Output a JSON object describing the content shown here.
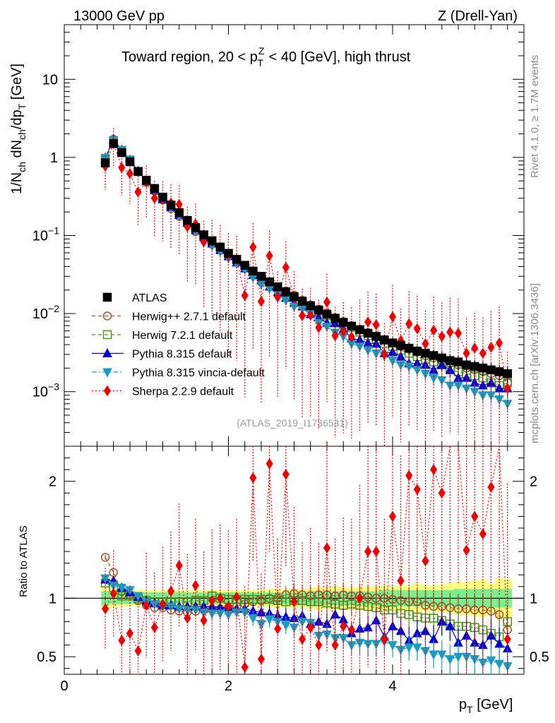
{
  "header": {
    "left": "13000 GeV pp",
    "right": "Z (Drell-Yan)"
  },
  "side_labels": {
    "rivet": "Rivet 4.1.0, ≥ 1.7M events",
    "mcplots": "mcplots.cern.ch [arXiv:1306.3436]"
  },
  "chart_data": [
    {
      "type": "scatter",
      "panel": "main",
      "title": "Toward region, 20 < p_T^Z < 40 [GeV], high thrust",
      "title_parts": {
        "pre": "Toward region, 20 < p",
        "sup": "Z",
        "sub": "T",
        "post": " < 40 [GeV], high thrust"
      },
      "ylabel": "1/N_ch dN_ch/dp_T [GeV]",
      "ylabel_parts": {
        "a": "1/N",
        "a_sub": "ch",
        "b": " dN",
        "b_sub": "ch",
        "c": "/dp",
        "c_sub": "T",
        "d": " [GeV]"
      },
      "yscale": "log",
      "ylim": [
        0.0002,
        50
      ],
      "xlim": [
        0,
        5.6
      ],
      "yticks": [
        {
          "value": 10,
          "label": "10"
        },
        {
          "value": 1,
          "label": "1"
        },
        {
          "value": 0.1,
          "label": "10",
          "exp": "−1"
        },
        {
          "value": 0.01,
          "label": "10",
          "exp": "−2"
        },
        {
          "value": 0.001,
          "label": "10",
          "exp": "−3"
        }
      ],
      "watermark": "(ATLAS_2019_I1736531)",
      "legend_position": "middle-left",
      "x": [
        0.5,
        0.6,
        0.7,
        0.8,
        0.9,
        1.0,
        1.1,
        1.2,
        1.3,
        1.4,
        1.5,
        1.6,
        1.7,
        1.8,
        1.9,
        2.0,
        2.1,
        2.2,
        2.3,
        2.4,
        2.5,
        2.6,
        2.7,
        2.8,
        2.9,
        3.0,
        3.1,
        3.2,
        3.3,
        3.4,
        3.5,
        3.6,
        3.7,
        3.8,
        3.9,
        4.0,
        4.1,
        4.2,
        4.3,
        4.4,
        4.5,
        4.6,
        4.7,
        4.8,
        4.9,
        5.0,
        5.1,
        5.2,
        5.3,
        5.4
      ],
      "series": [
        {
          "name": "ATLAS",
          "values": [
            0.85,
            1.5,
            1.15,
            0.88,
            0.66,
            0.51,
            0.4,
            0.31,
            0.245,
            0.196,
            0.156,
            0.126,
            0.102,
            0.085,
            0.071,
            0.059,
            0.0495,
            0.0415,
            0.035,
            0.03,
            0.0255,
            0.022,
            0.019,
            0.0165,
            0.0144,
            0.0126,
            0.0111,
            0.0098,
            0.0087,
            0.0077,
            0.0069,
            0.0062,
            0.0056,
            0.0051,
            0.0046,
            0.0042,
            0.0039,
            0.0036,
            0.0033,
            0.0031,
            0.0029,
            0.0027,
            0.0025,
            0.0024,
            0.0022,
            0.0021,
            0.002,
            0.0019,
            0.0018,
            0.0017
          ]
        },
        {
          "name": "Herwig++ 2.7.1 default",
          "values": [
            0.96,
            1.7,
            1.22,
            0.91,
            0.65,
            0.48,
            0.37,
            0.285,
            0.22,
            0.175,
            0.138,
            0.112,
            0.092,
            0.077,
            0.065,
            0.054,
            0.046,
            0.0395,
            0.034,
            0.0295,
            0.0255,
            0.022,
            0.0195,
            0.0172,
            0.0148,
            0.0129,
            0.0114,
            0.0101,
            0.0089,
            0.0079,
            0.007,
            0.0063,
            0.0057,
            0.0051,
            0.0046,
            0.0042,
            0.0038,
            0.0035,
            0.0032,
            0.0029,
            0.0027,
            0.0025,
            0.0023,
            0.0022,
            0.002,
            0.0019,
            0.0018,
            0.0017,
            0.0016,
            0.0013
          ]
        },
        {
          "name": "Herwig 7.2.1 default",
          "values": [
            0.93,
            1.62,
            1.18,
            0.9,
            0.66,
            0.5,
            0.39,
            0.3,
            0.237,
            0.19,
            0.152,
            0.123,
            0.1,
            0.086,
            0.071,
            0.058,
            0.049,
            0.041,
            0.0345,
            0.0297,
            0.0252,
            0.0216,
            0.0185,
            0.0162,
            0.0141,
            0.0122,
            0.0107,
            0.0094,
            0.0083,
            0.0073,
            0.0066,
            0.0058,
            0.0052,
            0.0047,
            0.0041,
            0.0038,
            0.0034,
            0.0031,
            0.0028,
            0.0026,
            0.0024,
            0.0022,
            0.0019,
            0.0018,
            0.0017,
            0.0016,
            0.0015,
            0.0013,
            0.0012,
            0.0013
          ]
        },
        {
          "name": "Pythia 8.315 default",
          "values": [
            0.98,
            1.7,
            1.25,
            0.93,
            0.67,
            0.5,
            0.38,
            0.29,
            0.23,
            0.183,
            0.145,
            0.117,
            0.095,
            0.079,
            0.065,
            0.054,
            0.045,
            0.0378,
            0.0312,
            0.0265,
            0.0221,
            0.0187,
            0.0159,
            0.0137,
            0.0123,
            0.0098,
            0.0089,
            0.0076,
            0.0075,
            0.0063,
            0.0048,
            0.0046,
            0.0042,
            0.0041,
            0.0031,
            0.0032,
            0.0028,
            0.0023,
            0.0023,
            0.0022,
            0.0019,
            0.0022,
            0.0019,
            0.0015,
            0.0015,
            0.0013,
            0.0012,
            0.0013,
            0.0011,
            0.0011
          ]
        },
        {
          "name": "Pythia 8.315 vincia-default",
          "values": [
            0.99,
            1.67,
            1.25,
            0.94,
            0.67,
            0.49,
            0.38,
            0.29,
            0.227,
            0.178,
            0.14,
            0.113,
            0.09,
            0.074,
            0.062,
            0.051,
            0.0435,
            0.0365,
            0.029,
            0.0235,
            0.0208,
            0.0176,
            0.0147,
            0.0123,
            0.0115,
            0.0099,
            0.0076,
            0.0068,
            0.0057,
            0.0051,
            0.0041,
            0.0038,
            0.0034,
            0.0031,
            0.0029,
            0.0025,
            0.0022,
            0.0021,
            0.0019,
            0.0017,
            0.0015,
            0.0014,
            0.0012,
            0.0012,
            0.0011,
            0.001,
            0.0009,
            0.0009,
            0.0008,
            0.0007
          ]
        },
        {
          "name": "Sherpa 2.2.9 default",
          "values": [
            0.77,
            1.55,
            0.74,
            0.62,
            0.36,
            0.48,
            0.3,
            0.29,
            0.26,
            0.25,
            0.13,
            0.14,
            0.083,
            0.084,
            0.071,
            0.055,
            0.05,
            0.017,
            0.071,
            0.0143,
            0.055,
            0.0163,
            0.039,
            0.016,
            0.0094,
            0.0095,
            0.0066,
            0.014,
            0.0052,
            0.0059,
            0.005,
            0.0062,
            0.0078,
            0.0072,
            0.003,
            0.0091,
            0.0045,
            0.0074,
            0.0064,
            0.0041,
            0.0061,
            0.0051,
            0.0058,
            0.0056,
            0.0031,
            0.0036,
            0.0031,
            0.0037,
            0.0042,
            0.0011
          ]
        }
      ]
    },
    {
      "type": "scatter",
      "panel": "ratio",
      "ylabel": "Ratio to ATLAS",
      "xlabel": "p_T [GeV]",
      "xlabel_parts": {
        "a": "p",
        "a_sub": "T",
        "b": " [GeV]"
      },
      "ylim": [
        0.35,
        2.3
      ],
      "xlim": [
        0,
        5.6
      ],
      "xticks": [
        {
          "value": 0,
          "label": "0"
        },
        {
          "value": 2,
          "label": "2"
        },
        {
          "value": 4,
          "label": "4"
        }
      ],
      "yticks": [
        {
          "value": 2,
          "label": "2"
        },
        {
          "value": 1,
          "label": "1"
        },
        {
          "value": 0.5,
          "label": "0.5"
        }
      ],
      "band_1sigma": [
        0.06,
        0.05,
        0.05,
        0.05,
        0.05,
        0.05,
        0.05,
        0.05,
        0.05,
        0.05,
        0.05,
        0.05,
        0.05,
        0.05,
        0.05,
        0.05,
        0.05,
        0.05,
        0.05,
        0.05,
        0.05,
        0.05,
        0.05,
        0.05,
        0.05,
        0.06,
        0.06,
        0.06,
        0.06,
        0.06,
        0.06,
        0.06,
        0.06,
        0.06,
        0.07,
        0.07,
        0.07,
        0.07,
        0.07,
        0.07,
        0.07,
        0.07,
        0.07,
        0.08,
        0.08,
        0.08,
        0.08,
        0.08,
        0.08,
        0.08
      ],
      "band_2sigma": [
        0.1,
        0.08,
        0.07,
        0.07,
        0.07,
        0.07,
        0.07,
        0.07,
        0.07,
        0.07,
        0.07,
        0.07,
        0.07,
        0.07,
        0.07,
        0.07,
        0.07,
        0.07,
        0.07,
        0.07,
        0.08,
        0.08,
        0.08,
        0.08,
        0.08,
        0.09,
        0.1,
        0.09,
        0.1,
        0.1,
        0.09,
        0.1,
        0.1,
        0.1,
        0.11,
        0.1,
        0.11,
        0.11,
        0.13,
        0.11,
        0.11,
        0.12,
        0.13,
        0.14,
        0.14,
        0.15,
        0.16,
        0.13,
        0.17,
        0.16
      ],
      "series": [
        {
          "name": "Herwig++ 2.7.1 default",
          "values": [
            1.35,
            1.22,
            1.06,
            1.03,
            0.98,
            0.94,
            0.92,
            0.92,
            0.9,
            0.89,
            0.88,
            0.89,
            0.9,
            0.9,
            0.91,
            0.92,
            0.93,
            0.95,
            0.97,
            0.98,
            1.0,
            1.0,
            1.03,
            1.04,
            1.03,
            1.02,
            1.03,
            1.03,
            1.02,
            1.03,
            1.02,
            1.02,
            1.01,
            1.0,
            1.0,
            0.99,
            0.98,
            0.97,
            0.97,
            0.94,
            0.93,
            0.93,
            0.92,
            0.91,
            0.91,
            0.9,
            0.9,
            0.89,
            0.86,
            0.73
          ]
        },
        {
          "name": "Herwig 7.2.1 default",
          "values": [
            1.13,
            1.09,
            1.02,
            1.02,
            1.0,
            0.98,
            0.97,
            0.97,
            0.97,
            0.97,
            0.97,
            0.98,
            0.98,
            1.02,
            1.0,
            0.99,
            0.99,
            0.99,
            0.99,
            0.99,
            0.99,
            0.98,
            0.97,
            0.98,
            0.98,
            0.97,
            0.97,
            0.96,
            0.95,
            0.94,
            0.95,
            0.94,
            0.93,
            0.92,
            0.9,
            0.9,
            0.87,
            0.86,
            0.84,
            0.83,
            0.83,
            0.81,
            0.78,
            0.76,
            0.76,
            0.75,
            0.73,
            0.7,
            0.67,
            0.8
          ]
        },
        {
          "name": "Pythia 8.315 default",
          "values": [
            1.16,
            1.15,
            1.09,
            1.05,
            1.01,
            0.98,
            0.96,
            0.94,
            0.94,
            0.93,
            0.93,
            0.93,
            0.93,
            0.93,
            0.92,
            0.92,
            0.91,
            0.91,
            0.89,
            0.88,
            0.87,
            0.85,
            0.84,
            0.83,
            0.85,
            0.78,
            0.8,
            0.78,
            0.86,
            0.82,
            0.7,
            0.74,
            0.75,
            0.81,
            0.67,
            0.76,
            0.72,
            0.64,
            0.7,
            0.72,
            0.65,
            0.8,
            0.76,
            0.62,
            0.68,
            0.62,
            0.6,
            0.68,
            0.61,
            0.57
          ]
        },
        {
          "name": "Pythia 8.315 vincia-default",
          "values": [
            1.17,
            1.11,
            1.09,
            1.07,
            1.02,
            0.97,
            0.95,
            0.93,
            0.93,
            0.91,
            0.9,
            0.9,
            0.88,
            0.87,
            0.87,
            0.86,
            0.88,
            0.88,
            0.83,
            0.78,
            0.82,
            0.8,
            0.77,
            0.75,
            0.8,
            0.79,
            0.68,
            0.69,
            0.66,
            0.66,
            0.6,
            0.62,
            0.61,
            0.61,
            0.63,
            0.6,
            0.56,
            0.58,
            0.58,
            0.55,
            0.52,
            0.52,
            0.48,
            0.5,
            0.5,
            0.48,
            0.45,
            0.47,
            0.44,
            0.42
          ]
        },
        {
          "name": "Sherpa 2.2.9 default",
          "values": [
            0.91,
            1.04,
            0.64,
            0.7,
            0.55,
            0.94,
            0.75,
            0.95,
            1.06,
            1.28,
            0.83,
            1.11,
            0.81,
            0.98,
            1.0,
            0.93,
            1.01,
            0.41,
            2.03,
            0.48,
            2.15,
            0.74,
            2.06,
            0.97,
            0.65,
            0.75,
            0.6,
            1.43,
            0.6,
            0.76,
            0.73,
            1.0,
            1.4,
            1.4,
            0.65,
            1.7,
            1.15,
            2.05,
            1.93,
            1.32,
            2.1,
            1.9,
            2.32,
            2.33,
            1.41,
            1.7,
            1.55,
            1.95,
            2.33,
            0.65
          ]
        }
      ]
    }
  ],
  "series_colors": {
    "ATLAS": "#000000",
    "Herwig++ 2.7.1 default": "#a0522d",
    "Herwig 7.2.1 default": "#4d8f1c",
    "Pythia 8.315 default": "#0000cc",
    "Pythia 8.315 vincia-default": "#1b9bbf",
    "Sherpa 2.2.9 default": "#ee0000"
  },
  "band_colors": {
    "inner": "#7bee8f",
    "outer": "#ffff80"
  }
}
